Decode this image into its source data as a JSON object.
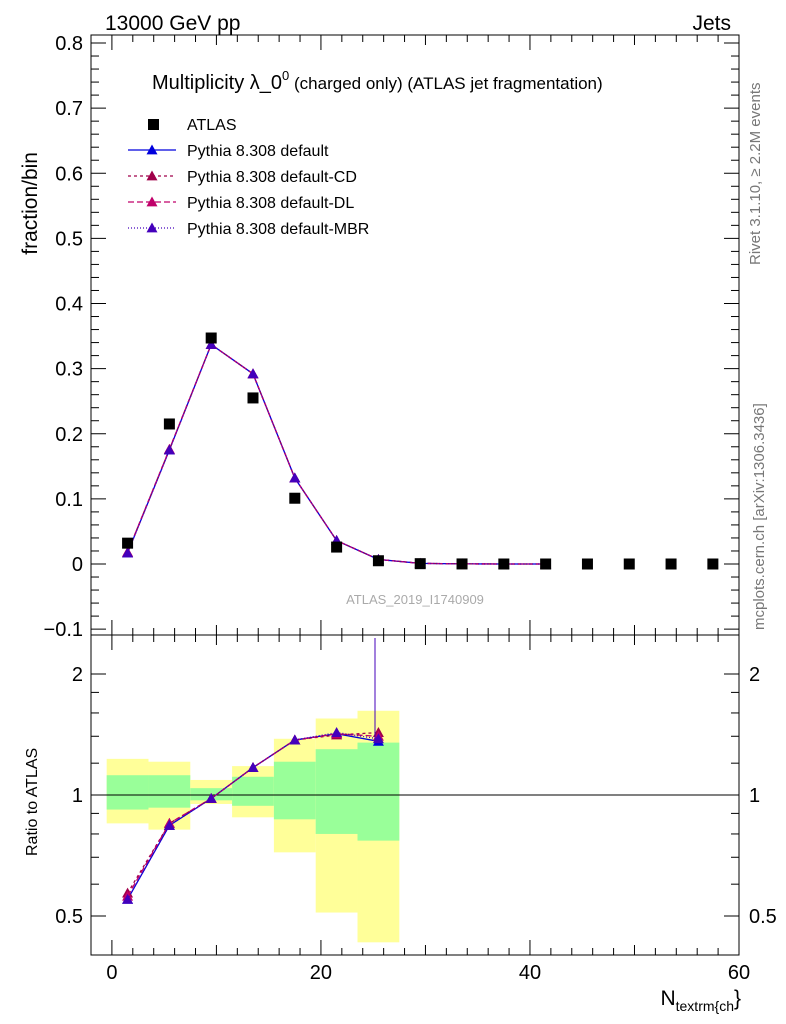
{
  "header": {
    "left": "13000 GeV pp",
    "right": "Jets"
  },
  "side": {
    "top": "Rivet 3.1.10, ≥ 2.2M events",
    "bottom": "mcplots.cern.ch [arXiv:1306.3436]"
  },
  "chart_data": [
    {
      "type": "scatter",
      "title": "Multiplicity λ_0",
      "title_sup": "0",
      "title_suffix": " (charged only) (ATLAS jet fragmentation)",
      "ylabel": "fraction/bin",
      "watermark": "ATLAS_2019_I1740909",
      "xlim": [
        -2,
        60
      ],
      "ylim": [
        -0.1,
        0.8
      ],
      "yticks": [
        -0.1,
        0,
        0.1,
        0.2,
        0.3,
        0.4,
        0.5,
        0.6,
        0.7,
        0.8
      ],
      "ytick_labels": [
        "−0.1",
        "0",
        "0.1",
        "0.2",
        "0.3",
        "0.4",
        "0.5",
        "0.6",
        "0.7",
        "0.8"
      ],
      "legend_position": "top-left",
      "data": {
        "name": "ATLAS",
        "color": "#000000",
        "x": [
          1.5,
          5.5,
          9.5,
          13.5,
          17.5,
          21.5,
          25.5,
          29.5,
          33.5,
          37.5,
          41.5,
          45.5,
          49.5,
          53.5,
          57.5
        ],
        "y": [
          0.032,
          0.215,
          0.347,
          0.255,
          0.101,
          0.026,
          0.005,
          0.0005,
          0.0001,
          0.0,
          0.0,
          0.0,
          0.0,
          0.0,
          0.0
        ]
      },
      "series": [
        {
          "name": "Pythia 8.308 default",
          "color": "#0000dd",
          "dash": "solid",
          "x": [
            1.5,
            5.5,
            9.5,
            13.5,
            17.5,
            21.5,
            25.5,
            29.5,
            33.5,
            37.5,
            41.5
          ],
          "y": [
            0.017,
            0.175,
            0.337,
            0.292,
            0.132,
            0.036,
            0.007,
            0.001,
            0.0002,
            0.0,
            0.0
          ]
        },
        {
          "name": "Pythia 8.308 default-CD",
          "color": "#a0004a",
          "dash": "3,3",
          "x": [
            1.5,
            5.5,
            9.5,
            13.5,
            17.5,
            21.5,
            25.5,
            29.5,
            33.5,
            37.5,
            41.5
          ],
          "y": [
            0.018,
            0.176,
            0.337,
            0.292,
            0.132,
            0.036,
            0.007,
            0.001,
            0.0002,
            0.0,
            0.0
          ]
        },
        {
          "name": "Pythia 8.308 default-DL",
          "color": "#c0006a",
          "dash": "6,3",
          "x": [
            1.5,
            5.5,
            9.5,
            13.5,
            17.5,
            21.5,
            25.5,
            29.5,
            33.5,
            37.5,
            41.5
          ],
          "y": [
            0.018,
            0.176,
            0.337,
            0.292,
            0.132,
            0.036,
            0.007,
            0.001,
            0.0002,
            0.0,
            0.0
          ]
        },
        {
          "name": "Pythia 8.308 default-MBR",
          "color": "#4400bb",
          "dash": "1,2",
          "x": [
            1.5,
            5.5,
            9.5,
            13.5,
            17.5,
            21.5,
            25.5,
            29.5,
            33.5,
            37.5,
            41.5
          ],
          "y": [
            0.017,
            0.175,
            0.337,
            0.292,
            0.132,
            0.036,
            0.007,
            0.001,
            0.0002,
            0.0,
            0.0
          ]
        }
      ]
    },
    {
      "type": "line",
      "ylabel": "Ratio to ATLAS",
      "xlabel": "N",
      "xlabel_sub": "textrm{ch",
      "xlabel_tail": "}",
      "xlim": [
        -2,
        60
      ],
      "ylim": [
        0.4,
        2.3
      ],
      "log_y": true,
      "xticks": [
        0,
        20,
        40,
        60
      ],
      "xtick_labels": [
        "0",
        "20",
        "40",
        "60"
      ],
      "yticks": [
        0.5,
        1,
        2
      ],
      "ytick_labels": [
        "0.5",
        "1",
        "2"
      ],
      "reference_line": 1,
      "bins": [
        [
          -0.5,
          3.5
        ],
        [
          3.5,
          7.5
        ],
        [
          7.5,
          11.5
        ],
        [
          11.5,
          15.5
        ],
        [
          15.5,
          19.5
        ],
        [
          19.5,
          23.5
        ],
        [
          23.5,
          27.5
        ]
      ],
      "band_outer": {
        "color": "#ffff99",
        "lo": [
          0.85,
          0.82,
          0.95,
          0.88,
          0.72,
          0.51,
          0.43
        ],
        "hi": [
          1.23,
          1.21,
          1.09,
          1.18,
          1.38,
          1.55,
          1.62
        ]
      },
      "band_inner": {
        "color": "#99ff99",
        "lo": [
          0.92,
          0.93,
          0.97,
          0.94,
          0.87,
          0.8,
          0.77
        ],
        "hi": [
          1.12,
          1.12,
          1.04,
          1.11,
          1.21,
          1.3,
          1.35
        ]
      },
      "series": [
        {
          "name": "Pythia 8.308 default",
          "color": "#0000dd",
          "dash": "solid",
          "x": [
            1.5,
            5.5,
            9.5,
            13.5,
            17.5,
            21.5,
            25.5
          ],
          "y": [
            0.55,
            0.84,
            0.98,
            1.17,
            1.37,
            1.42,
            1.36
          ]
        },
        {
          "name": "Pythia 8.308 default-CD",
          "color": "#a0004a",
          "dash": "3,3",
          "x": [
            1.5,
            5.5,
            9.5,
            13.5,
            17.5,
            21.5,
            25.5
          ],
          "y": [
            0.57,
            0.85,
            0.98,
            1.17,
            1.37,
            1.41,
            1.43
          ]
        },
        {
          "name": "Pythia 8.308 default-DL",
          "color": "#c0006a",
          "dash": "6,3",
          "x": [
            1.5,
            5.5,
            9.5,
            13.5,
            17.5,
            21.5,
            25.5
          ],
          "y": [
            0.56,
            0.85,
            0.98,
            1.17,
            1.37,
            1.42,
            1.4
          ]
        },
        {
          "name": "Pythia 8.308 default-MBR",
          "color": "#4400bb",
          "dash": "1,2",
          "x": [
            1.5,
            5.5,
            9.5,
            13.5,
            17.5,
            21.5,
            25.5
          ],
          "y": [
            0.55,
            0.84,
            0.98,
            1.17,
            1.37,
            1.43,
            1.38
          ]
        }
      ]
    }
  ]
}
